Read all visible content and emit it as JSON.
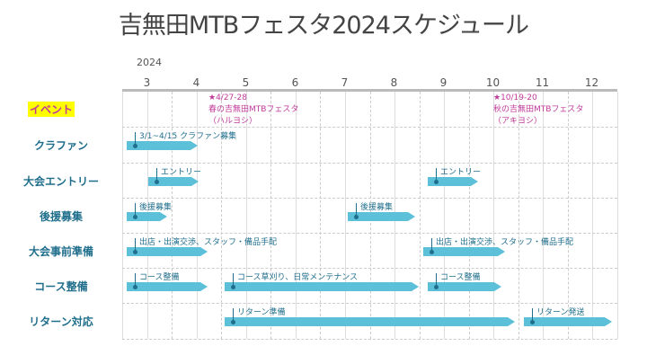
{
  "title": "吉無田MTBフェスタ2024スケジュール",
  "year": "2024",
  "months": [
    "3",
    "4",
    "5",
    "6",
    "7",
    "8",
    "9",
    "10",
    "11",
    "12"
  ],
  "rows": [
    "イベント",
    "クラファン",
    "大会エントリー",
    "後援募集",
    "大会事前準備",
    "コース整備",
    "リターン対応"
  ],
  "events": [
    {
      "date": "★4/27-28",
      "name": "春の吉無田MTBフェスタ",
      "nick": "（ハルヨシ）"
    },
    {
      "date": "★10/19-20",
      "name": "秋の吉無田MTBフェスタ",
      "nick": "（アキヨシ）"
    }
  ],
  "bars": [
    {
      "row": 1,
      "label": "3/1~4/15 クラファン募集",
      "start": "3/1",
      "end": "4/15"
    },
    {
      "row": 2,
      "label": "エントリー"
    },
    {
      "row": 2,
      "label": "エントリー"
    },
    {
      "row": 3,
      "label": "後援募集"
    },
    {
      "row": 3,
      "label": "後援募集"
    },
    {
      "row": 4,
      "label": "出店・出演交渉、スタッフ・備品手配"
    },
    {
      "row": 4,
      "label": "出店・出演交渉、スタッフ・備品手配"
    },
    {
      "row": 5,
      "label": "コース整備"
    },
    {
      "row": 5,
      "label": "コース草刈り、日常メンテナンス"
    },
    {
      "row": 5,
      "label": "コース整備"
    },
    {
      "row": 6,
      "label": "リターン準備"
    },
    {
      "row": 6,
      "label": "リターン発送"
    }
  ],
  "colors": {
    "bar": "#5bc0d8",
    "label": "#1f6e8c",
    "event": "#c0399a",
    "highlight": "#ffff00"
  }
}
